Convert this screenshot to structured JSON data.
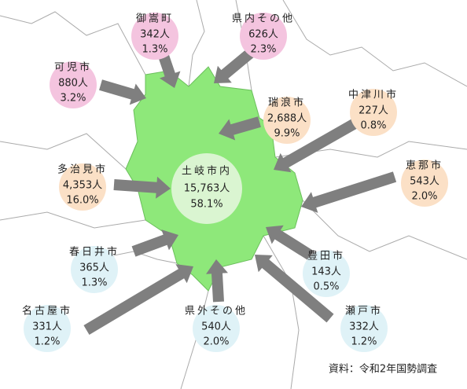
{
  "center": {
    "name": "土岐市内",
    "count": "15,763人",
    "pct": "58.1%"
  },
  "origins": [
    {
      "name": "御嵩町",
      "count": "342人",
      "pct": "1.3%"
    },
    {
      "name": "県内その他",
      "count": "626人",
      "pct": "2.3%"
    },
    {
      "name": "可児市",
      "count": "880人",
      "pct": "3.2%"
    },
    {
      "name": "瑞浪市",
      "count": "2,688人",
      "pct": "9.9%"
    },
    {
      "name": "中津川市",
      "count": "227人",
      "pct": "0.8%"
    },
    {
      "name": "多治見市",
      "count": "4,353人",
      "pct": "16.0%"
    },
    {
      "name": "恵那市",
      "count": "543人",
      "pct": "2.0%"
    },
    {
      "name": "春日井市",
      "count": "365人",
      "pct": "1.3%"
    },
    {
      "name": "豊田市",
      "count": "143人",
      "pct": "0.5%"
    },
    {
      "name": "名古屋市",
      "count": "331人",
      "pct": "1.2%"
    },
    {
      "name": "県外その他",
      "count": "540人",
      "pct": "2.0%"
    },
    {
      "name": "瀬戸市",
      "count": "332人",
      "pct": "1.2%"
    }
  ],
  "source": "資料：令和2年国勢調査"
}
